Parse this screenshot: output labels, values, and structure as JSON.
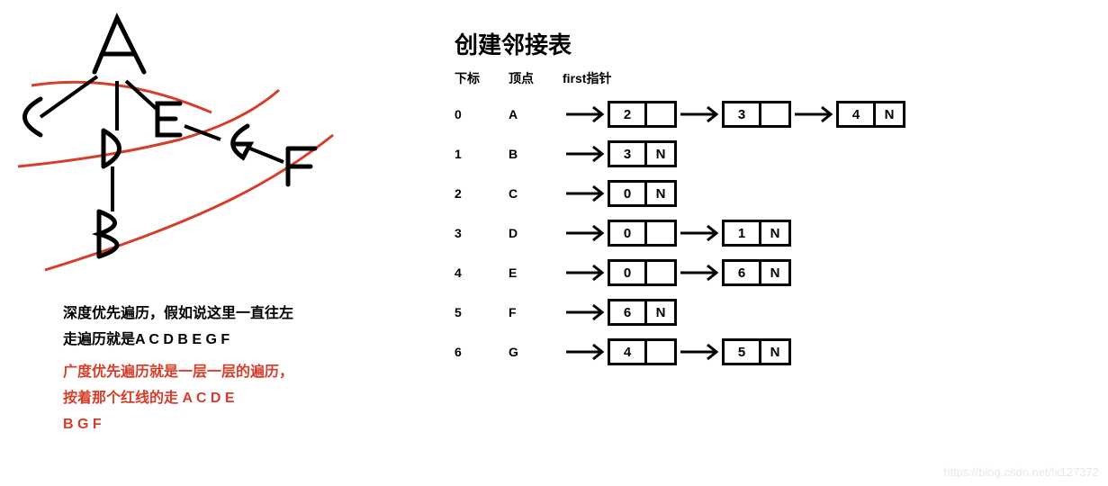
{
  "title": "创建邻接表",
  "headers": {
    "idx": "下标",
    "vertex": "顶点",
    "first": "first指针"
  },
  "rows": [
    {
      "idx": "0",
      "vertex": "A",
      "nodes": [
        {
          "v": "2",
          "t": ""
        },
        {
          "v": "3",
          "t": ""
        },
        {
          "v": "4",
          "t": "N"
        }
      ]
    },
    {
      "idx": "1",
      "vertex": "B",
      "nodes": [
        {
          "v": "3",
          "t": "N"
        }
      ]
    },
    {
      "idx": "2",
      "vertex": "C",
      "nodes": [
        {
          "v": "0",
          "t": "N"
        }
      ]
    },
    {
      "idx": "3",
      "vertex": "D",
      "nodes": [
        {
          "v": "0",
          "t": ""
        },
        {
          "v": "1",
          "t": "N"
        }
      ]
    },
    {
      "idx": "4",
      "vertex": "E",
      "nodes": [
        {
          "v": "0",
          "t": ""
        },
        {
          "v": "6",
          "t": "N"
        }
      ]
    },
    {
      "idx": "5",
      "vertex": "F",
      "nodes": [
        {
          "v": "6",
          "t": "N"
        }
      ]
    },
    {
      "idx": "6",
      "vertex": "G",
      "nodes": [
        {
          "v": "4",
          "t": ""
        },
        {
          "v": "5",
          "t": "N"
        }
      ]
    }
  ],
  "desc1_l1": "深度优先遍历，假如说这里一直往左",
  "desc1_l2": "走遍历就是A  C  D  B  E  G  F",
  "desc2_l1": "广度优先遍历就是一层一层的遍历，",
  "desc2_l2": "按着那个红线的走   A  C  D  E",
  "desc2_l3": "B   G   F",
  "watermark": "https://blog.csdn.net/lx127372",
  "colors": {
    "stroke": "#000000",
    "red": "#d43e2a",
    "bg": "#ffffff"
  },
  "graph_letters": {
    "A": "A",
    "B": "B",
    "C": "C",
    "D": "D",
    "E": "E",
    "F": "F",
    "G": "G"
  }
}
